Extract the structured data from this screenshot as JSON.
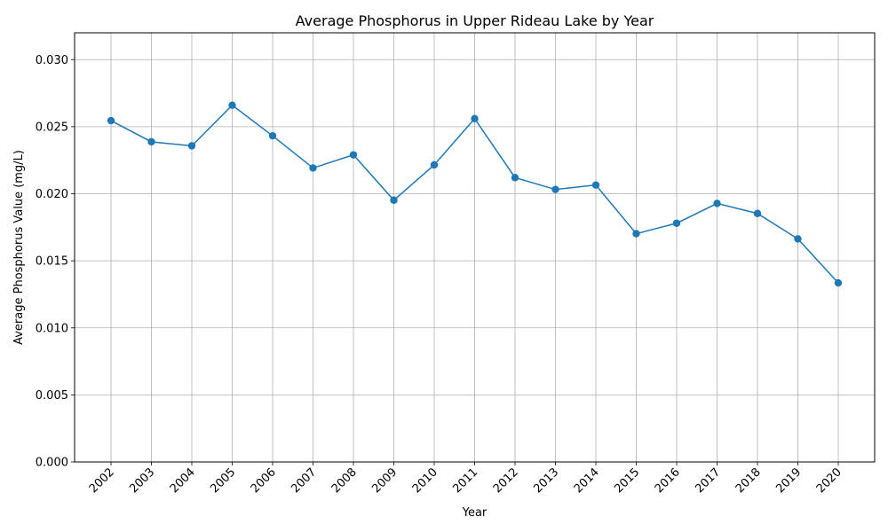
{
  "chart_data": {
    "type": "line",
    "title": "Average Phosphorus in Upper Rideau Lake by Year",
    "xlabel": "Year",
    "ylabel": "Average Phosphorus Value (mg/L)",
    "categories": [
      "2002",
      "2003",
      "2004",
      "2005",
      "2006",
      "2007",
      "2008",
      "2009",
      "2010",
      "2011",
      "2012",
      "2013",
      "2014",
      "2015",
      "2016",
      "2017",
      "2018",
      "2019",
      "2020"
    ],
    "series": [
      {
        "name": "Average Phosphorus",
        "color": "#1f77b4",
        "values": [
          0.02545,
          0.02387,
          0.02357,
          0.0266,
          0.02432,
          0.02192,
          0.0229,
          0.01952,
          0.02215,
          0.0256,
          0.0212,
          0.02032,
          0.02065,
          0.01702,
          0.0178,
          0.01928,
          0.01853,
          0.01663,
          0.01335
        ]
      }
    ],
    "ylim": [
      0,
      0.032
    ],
    "yticks": [
      0.0,
      0.005,
      0.01,
      0.015,
      0.02,
      0.025,
      0.03
    ],
    "ytick_labels": [
      "0.000",
      "0.005",
      "0.010",
      "0.015",
      "0.020",
      "0.025",
      "0.030"
    ],
    "grid": true,
    "marker": "circle"
  }
}
